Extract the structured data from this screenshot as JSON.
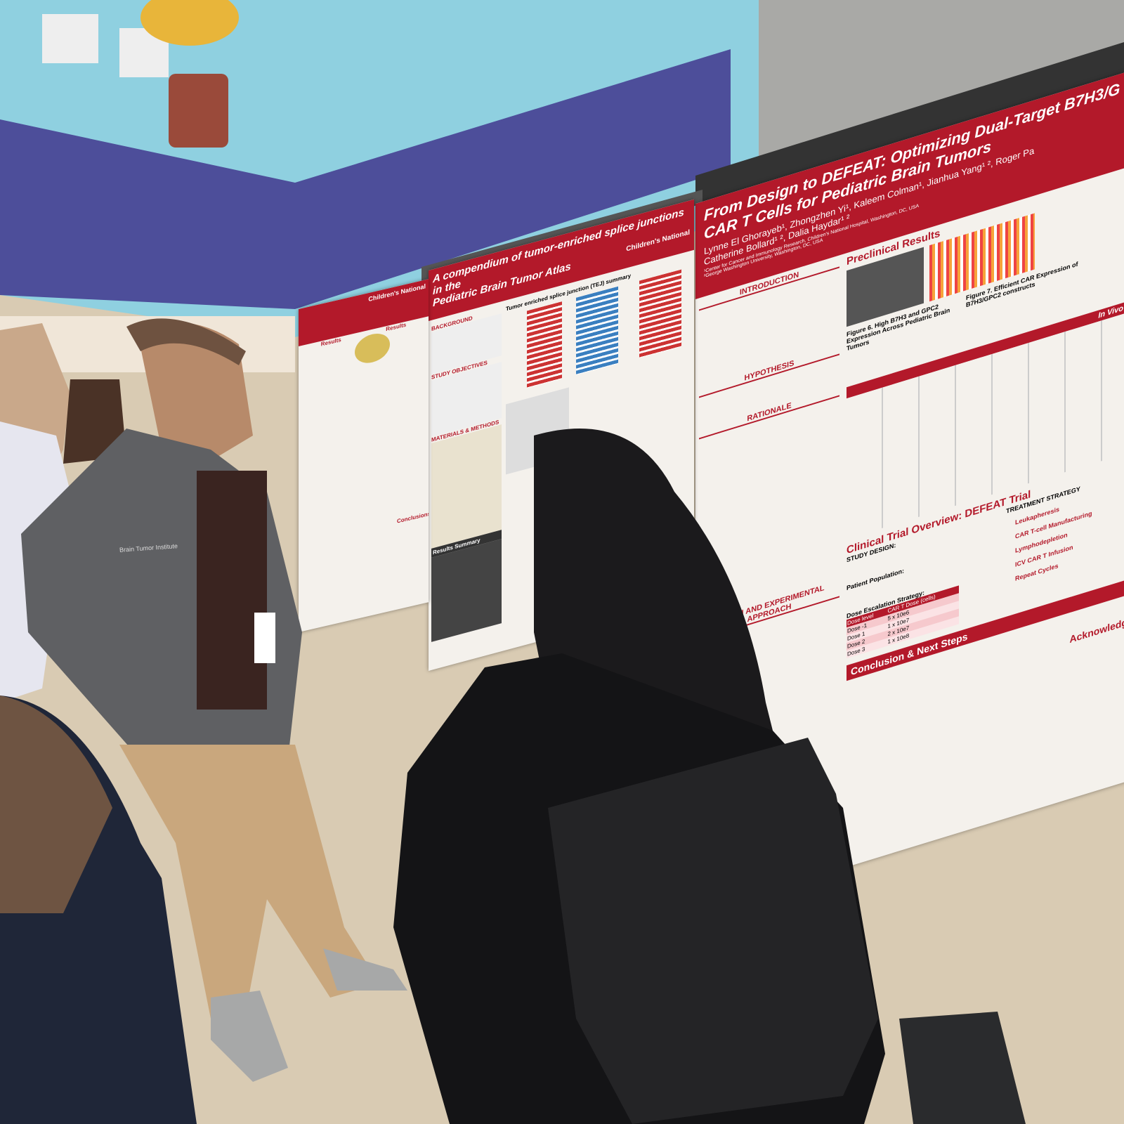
{
  "main_poster": {
    "title_line1": "From Design to DEFEAT: Optimizing Dual-Target B7H3/G",
    "title_line2": "CAR T Cells for Pediatric Brain Tumors",
    "authors_line1": "Lynne El Ghorayeb¹, Zhongzhen Yi¹, Kaleem Colman¹, Jianhua Yang¹ ², Roger Pa",
    "authors_line2": "Catherine Bollard¹ ², Dalia Haydar¹ ²",
    "affiliation1": "¹Center for Cancer and Immunology Research, Children's National Hospital, Washington, DC, USA",
    "affiliation2": "²George Washington University, Washington, DC, USA",
    "sections": {
      "introduction": "INTRODUCTION",
      "hypothesis": "HYPOTHESIS",
      "rationale": "RATIONALE",
      "design": "DESIGN AND EXPERIMENTAL APPROACH",
      "preclinical": "Preclinical Results",
      "figure6": "Figure 6. High B7H3 and GPC2 Expression Across Pediatric Brain Tumors",
      "figure7": "Figure 7. Efficient CAR Expression of B7H3/GPC2 constructs",
      "in_vivo": "In Vivo",
      "clinical_trial": "Clinical Trial Overview: DEFEAT Trial",
      "treatment_strategy": "TREATMENT STRATEGY",
      "study_design": "STUDY DESIGN:",
      "patient_population": "Patient Population:",
      "dose_escalation": "Dose Escalation Strategy:",
      "conclusion": "Conclusion & Next Steps",
      "acknowledgements": "Acknowledg"
    },
    "treatment_steps": [
      "Leukapheresis",
      "CAR T-cell Manufacturing",
      "Lymphodepletion",
      "ICV CAR T Infusion",
      "Repeat Cycles"
    ],
    "dose_table": {
      "header": [
        "Dose level",
        "CAR T Dose (cells)"
      ],
      "rows": [
        [
          "Dose -1",
          "5 x 10e6"
        ],
        [
          "Dose 1",
          "1 x 10e7"
        ],
        [
          "Dose 2",
          "2 x 10e7"
        ],
        [
          "Dose 3",
          "1 x 10e8"
        ]
      ]
    }
  },
  "middle_poster": {
    "title_line1": "A compendium of tumor-enriched splice junctions in the",
    "title_line2": "Pediatric Brain Tumor Atlas",
    "logo": "Children's National",
    "sections": [
      "BACKGROUND",
      "STUDY OBJECTIVES",
      "MATERIALS & METHODS",
      "Results Summary"
    ],
    "chart_title": "Tumor enriched splice junction (TEJ) summary"
  },
  "left_poster": {
    "logo": "Children's National",
    "sections": [
      "Results",
      "Results",
      "Conclusions"
    ]
  },
  "jacket_text": "Brain Tumor Institute"
}
